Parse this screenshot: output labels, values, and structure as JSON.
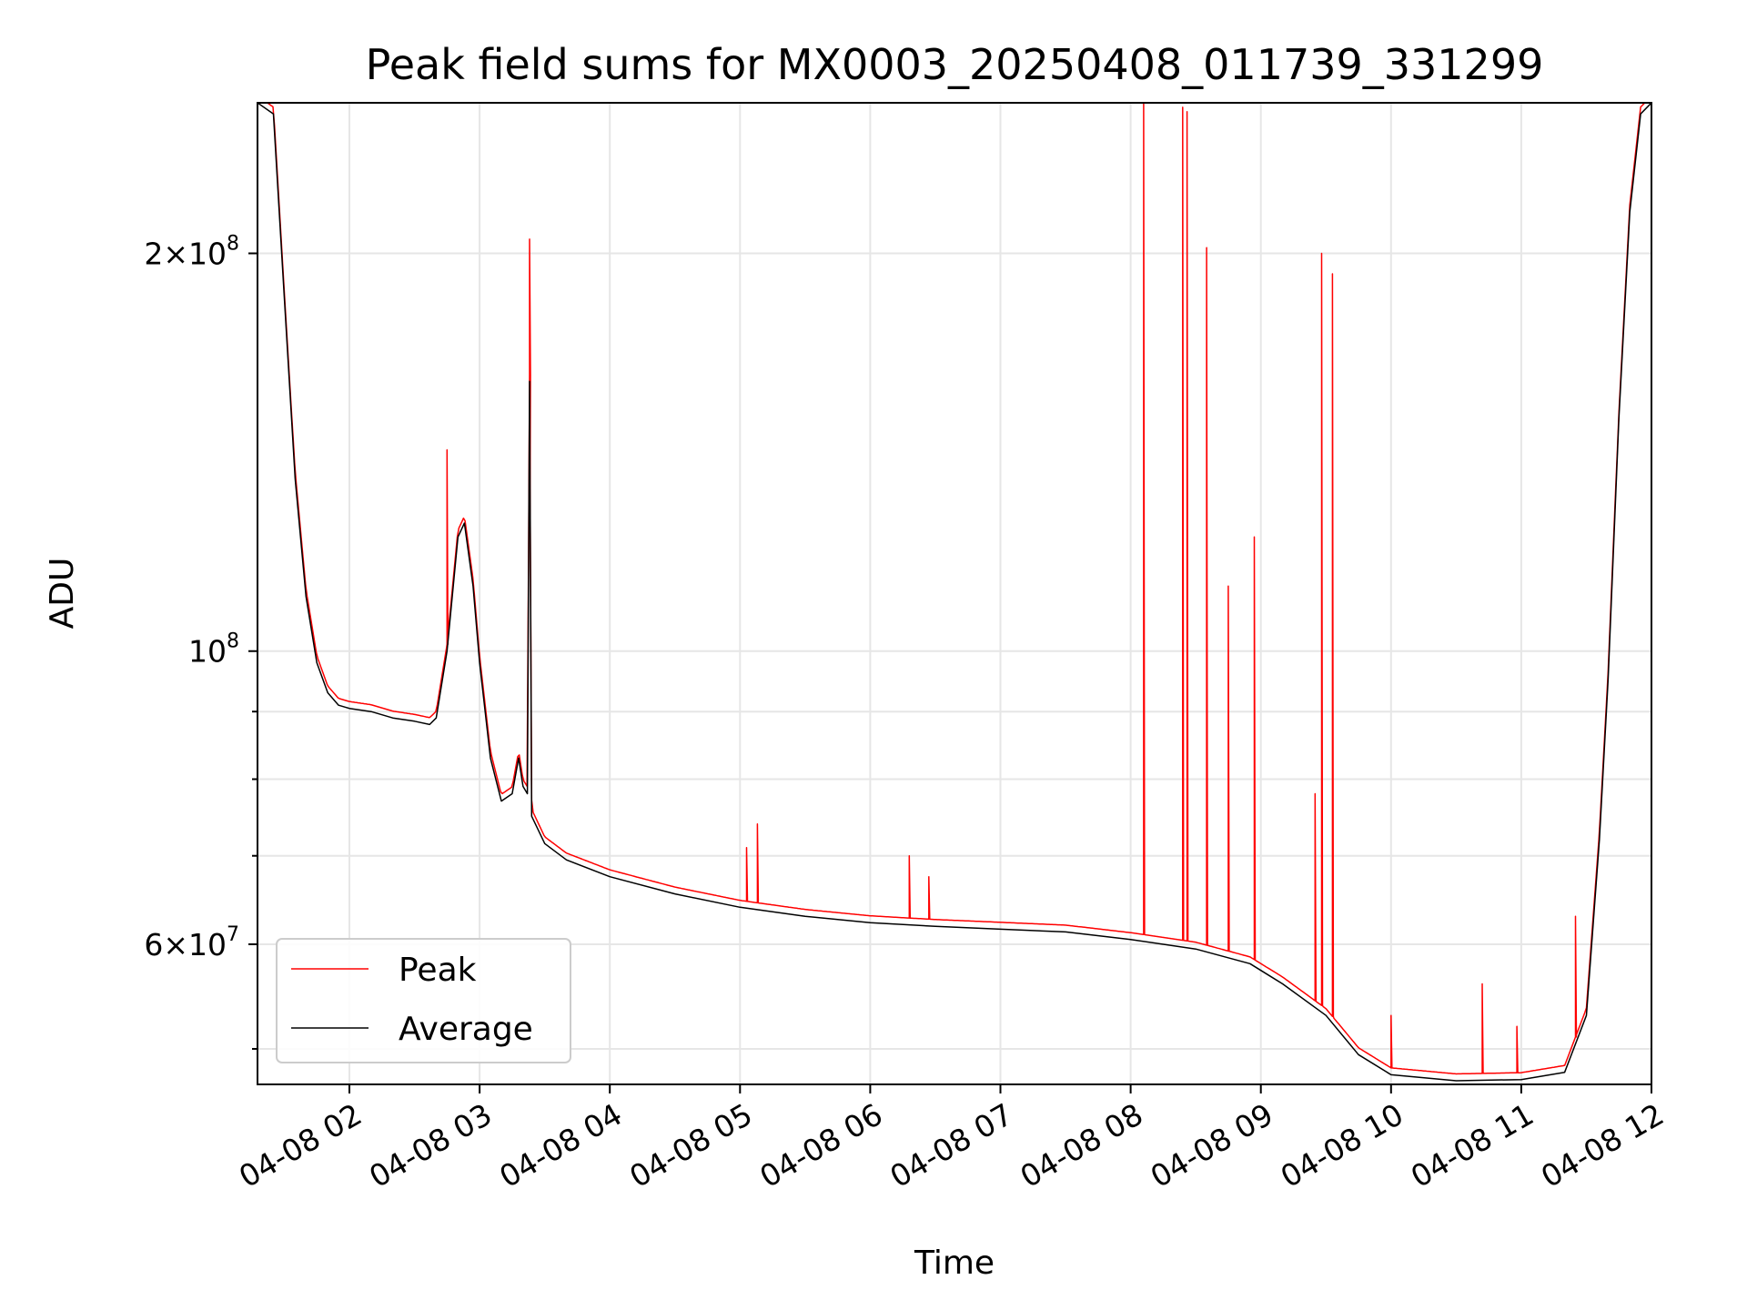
{
  "chart_data": {
    "type": "line",
    "title": "Peak field sums for MX0003_20250408_011739_331299",
    "xlabel": "Time",
    "ylabel": "ADU",
    "y_scale": "log",
    "ylim": [
      47000000,
      260000000
    ],
    "xlim": [
      "2025-04-08 01:17:39",
      "2025-04-08 12:00:00"
    ],
    "grid": true,
    "legend_position": "lower-left",
    "x_ticks": [
      "04-08 02",
      "04-08 03",
      "04-08 04",
      "04-08 05",
      "04-08 06",
      "04-08 07",
      "04-08 08",
      "04-08 09",
      "04-08 10",
      "04-08 11",
      "04-08 12"
    ],
    "y_tick_labels": [
      {
        "value": 200000000,
        "mantissa": "2",
        "exponent": "8"
      },
      {
        "value": 100000000,
        "mantissa": "",
        "exponent": "8"
      },
      {
        "value": 60000000,
        "mantissa": "6",
        "exponent": "7"
      }
    ],
    "y_minor_ticks": [
      50000000,
      70000000,
      80000000,
      90000000
    ],
    "series": [
      {
        "name": "Average",
        "color": "#000000",
        "points": [
          [
            "2025-04-08 01:17:39",
            260000000
          ],
          [
            "2025-04-08 01:25:00",
            255000000
          ],
          [
            "2025-04-08 01:30:00",
            185000000
          ],
          [
            "2025-04-08 01:35:00",
            135000000
          ],
          [
            "2025-04-08 01:40:00",
            110000000
          ],
          [
            "2025-04-08 01:45:00",
            98000000
          ],
          [
            "2025-04-08 01:50:00",
            93000000
          ],
          [
            "2025-04-08 01:55:00",
            91000000
          ],
          [
            "2025-04-08 02:00:00",
            90500000
          ],
          [
            "2025-04-08 02:10:00",
            90000000
          ],
          [
            "2025-04-08 02:20:00",
            89000000
          ],
          [
            "2025-04-08 02:30:00",
            88500000
          ],
          [
            "2025-04-08 02:37:00",
            88000000
          ],
          [
            "2025-04-08 02:40:00",
            89000000
          ],
          [
            "2025-04-08 02:45:00",
            100000000
          ],
          [
            "2025-04-08 02:50:00",
            122000000
          ],
          [
            "2025-04-08 02:53:00",
            125000000
          ],
          [
            "2025-04-08 02:57:00",
            112000000
          ],
          [
            "2025-04-08 03:00:00",
            98000000
          ],
          [
            "2025-04-08 03:05:00",
            83000000
          ],
          [
            "2025-04-08 03:10:00",
            77000000
          ],
          [
            "2025-04-08 03:15:00",
            78000000
          ],
          [
            "2025-04-08 03:18:00",
            83000000
          ],
          [
            "2025-04-08 03:20:00",
            79000000
          ],
          [
            "2025-04-08 03:22:00",
            78000000
          ],
          [
            "2025-04-08 03:23:00",
            160000000
          ],
          [
            "2025-04-08 03:24:00",
            75000000
          ],
          [
            "2025-04-08 03:30:00",
            71500000
          ],
          [
            "2025-04-08 03:40:00",
            69500000
          ],
          [
            "2025-04-08 04:00:00",
            67500000
          ],
          [
            "2025-04-08 04:30:00",
            65500000
          ],
          [
            "2025-04-08 05:00:00",
            64000000
          ],
          [
            "2025-04-08 05:30:00",
            63000000
          ],
          [
            "2025-04-08 06:00:00",
            62300000
          ],
          [
            "2025-04-08 06:30:00",
            61900000
          ],
          [
            "2025-04-08 07:00:00",
            61600000
          ],
          [
            "2025-04-08 07:30:00",
            61300000
          ],
          [
            "2025-04-08 08:00:00",
            60500000
          ],
          [
            "2025-04-08 08:30:00",
            59500000
          ],
          [
            "2025-04-08 08:55:00",
            58000000
          ],
          [
            "2025-04-08 09:10:00",
            56000000
          ],
          [
            "2025-04-08 09:30:00",
            53000000
          ],
          [
            "2025-04-08 09:45:00",
            49500000
          ],
          [
            "2025-04-08 10:00:00",
            47800000
          ],
          [
            "2025-04-08 10:30:00",
            47300000
          ],
          [
            "2025-04-08 11:00:00",
            47400000
          ],
          [
            "2025-04-08 11:20:00",
            48000000
          ],
          [
            "2025-04-08 11:30:00",
            53000000
          ],
          [
            "2025-04-08 11:36:00",
            72000000
          ],
          [
            "2025-04-08 11:40:00",
            95000000
          ],
          [
            "2025-04-08 11:45:00",
            150000000
          ],
          [
            "2025-04-08 11:50:00",
            215000000
          ],
          [
            "2025-04-08 11:55:00",
            255000000
          ],
          [
            "2025-04-08 12:00:00",
            260000000
          ]
        ]
      },
      {
        "name": "Peak",
        "color": "#ff0000",
        "offset_factor": 1.012,
        "spikes": [
          [
            "2025-04-08 02:45:00",
            142000000
          ],
          [
            "2025-04-08 03:23:00",
            205000000
          ],
          [
            "2025-04-08 05:03:00",
            71000000
          ],
          [
            "2025-04-08 05:08:00",
            74000000
          ],
          [
            "2025-04-08 06:18:00",
            70000000
          ],
          [
            "2025-04-08 06:27:00",
            67500000
          ],
          [
            "2025-04-08 08:06:00",
            260000000
          ],
          [
            "2025-04-08 08:24:00",
            258000000
          ],
          [
            "2025-04-08 08:26:00",
            256000000
          ],
          [
            "2025-04-08 08:35:00",
            202000000
          ],
          [
            "2025-04-08 08:45:00",
            112000000
          ],
          [
            "2025-04-08 08:57:00",
            122000000
          ],
          [
            "2025-04-08 09:25:00",
            78000000
          ],
          [
            "2025-04-08 09:28:00",
            200000000
          ],
          [
            "2025-04-08 09:33:00",
            193000000
          ],
          [
            "2025-04-08 10:00:00",
            53000000
          ],
          [
            "2025-04-08 10:42:00",
            56000000
          ],
          [
            "2025-04-08 10:58:00",
            52000000
          ],
          [
            "2025-04-08 11:25:00",
            63000000
          ]
        ]
      }
    ]
  }
}
